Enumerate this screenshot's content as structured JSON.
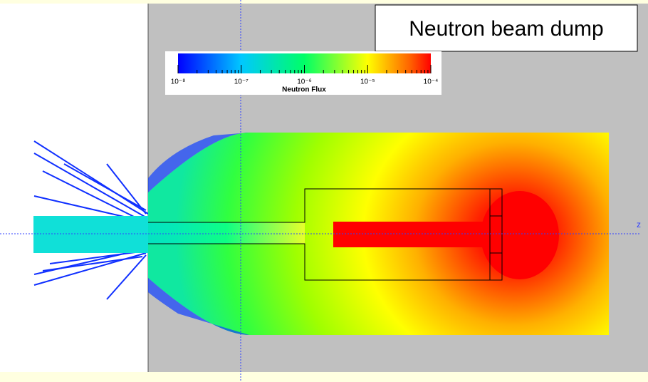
{
  "title": "Neutron beam dump",
  "colorbar": {
    "label": "Neutron Flux",
    "scale": "log",
    "lim": [
      1e-08,
      0.0001
    ],
    "ticks": [
      {
        "value": 1e-08,
        "label": "10⁻⁸"
      },
      {
        "value": 1e-07,
        "label": "10⁻⁷"
      },
      {
        "value": 1e-06,
        "label": "10⁻⁶"
      },
      {
        "value": 1e-05,
        "label": "10⁻⁵"
      },
      {
        "value": 0.0001,
        "label": "10⁻⁴"
      }
    ]
  },
  "axis": {
    "label": "z"
  }
}
